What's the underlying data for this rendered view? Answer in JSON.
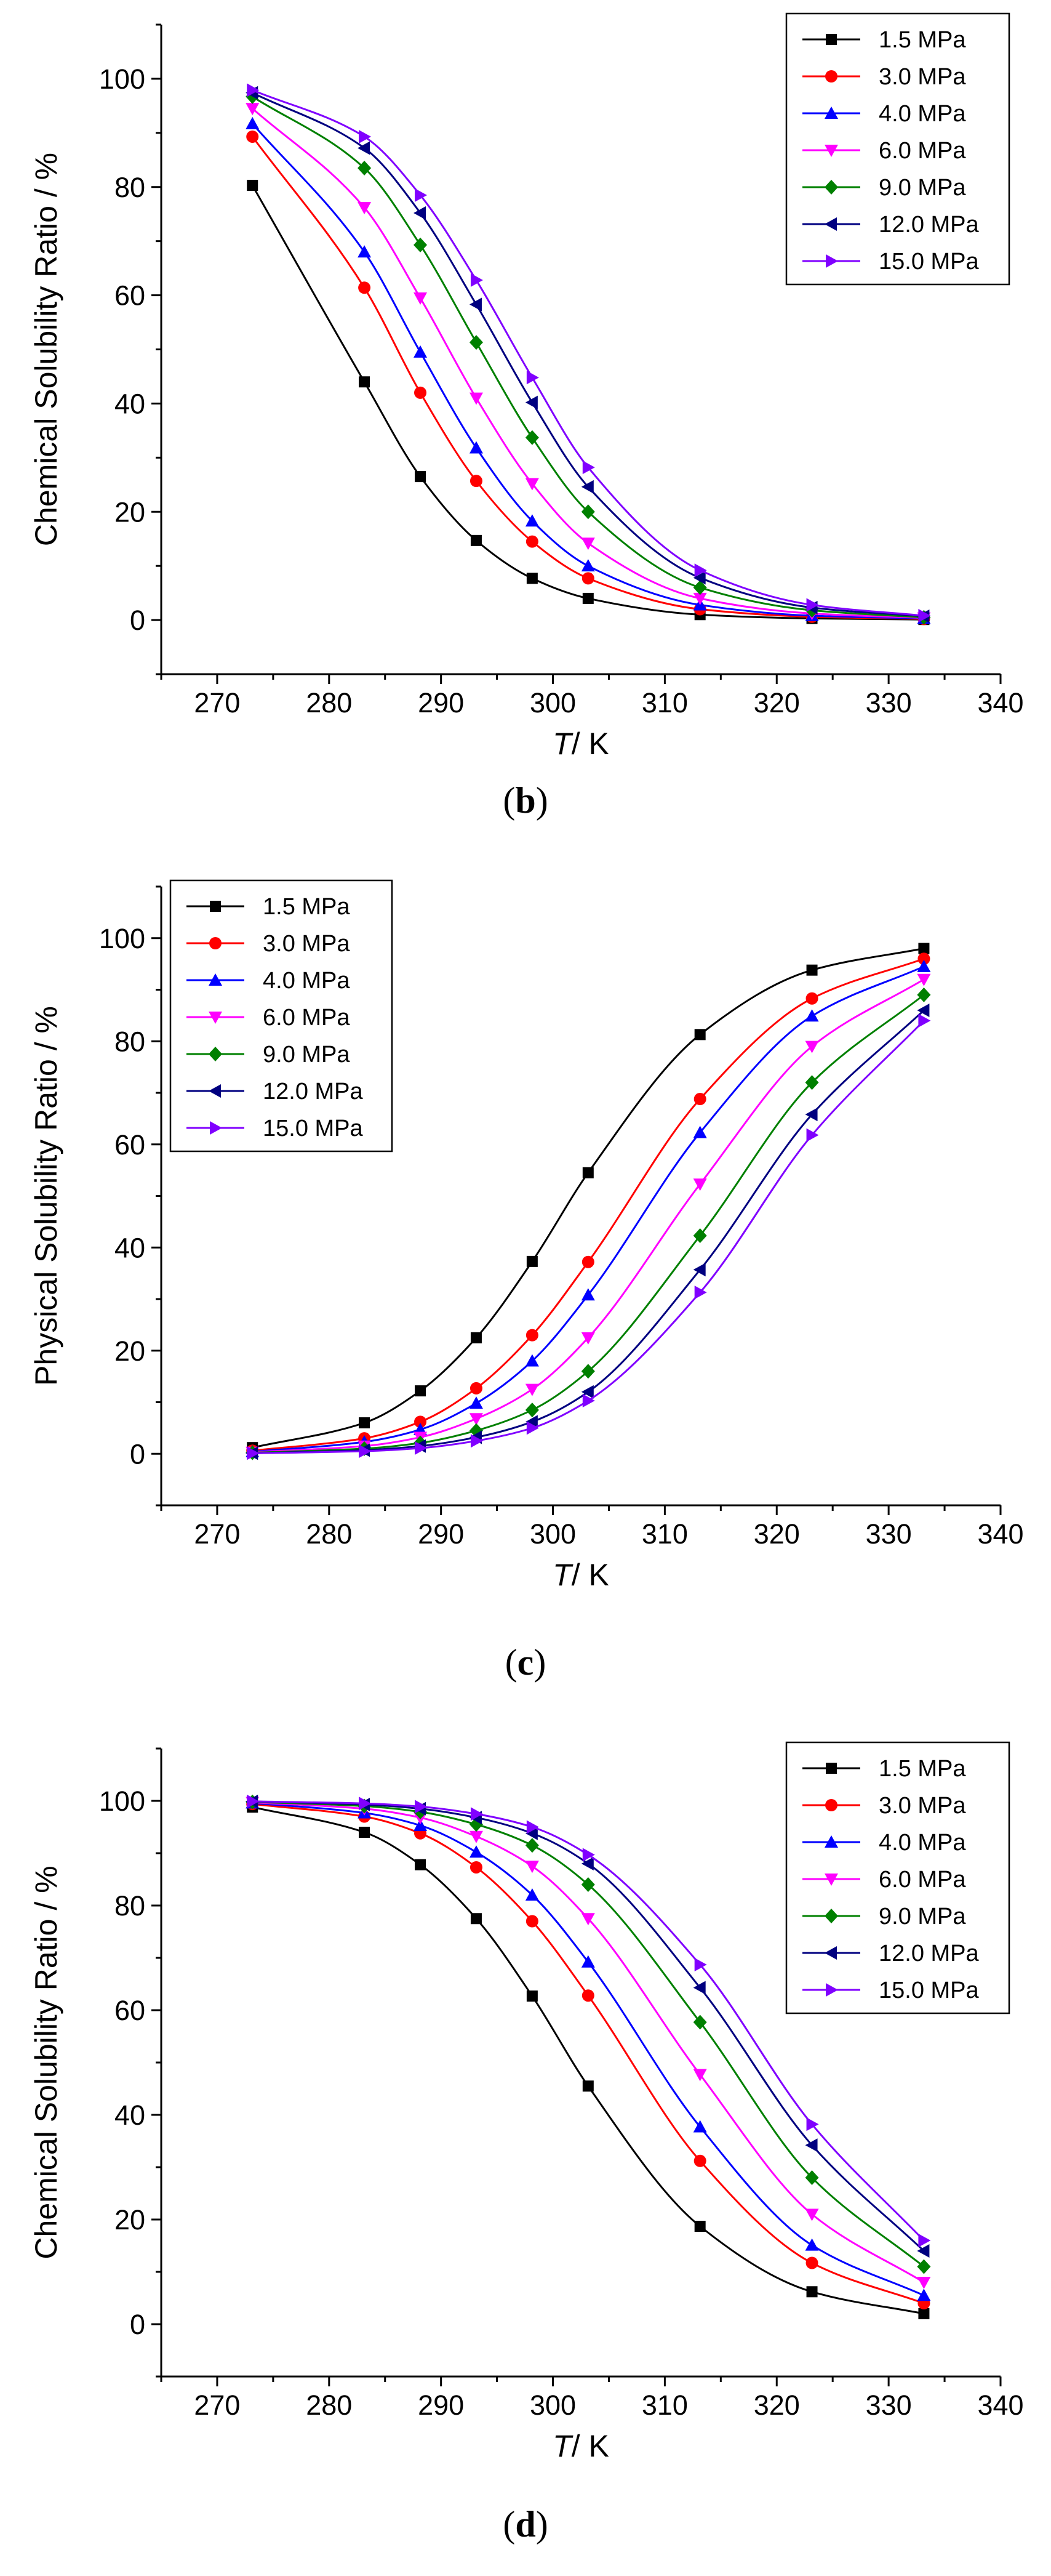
{
  "chart_data": [
    {
      "type": "line",
      "panel": "b",
      "caption": {
        "open": "(",
        "letter": "b",
        "close": ")"
      },
      "title": "",
      "xlabel_italic": "T",
      "xlabel_rest": "/ K",
      "ylabel": "Chemical Solubility Ratio / %",
      "xlim": [
        265,
        340
      ],
      "ylim": [
        -10,
        110
      ],
      "x_ticks": [
        270,
        280,
        290,
        300,
        310,
        320,
        330,
        340
      ],
      "y_ticks": [
        0,
        20,
        40,
        60,
        80,
        100
      ],
      "grid": false,
      "legend_position": "top-right",
      "x": [
        273.15,
        283.15,
        288.15,
        293.15,
        298.15,
        303.15,
        313.15,
        323.15,
        333.15
      ],
      "series": [
        {
          "name": "1.5 MPa",
          "color": "#000000",
          "marker": "square",
          "values": [
            80.3,
            44.0,
            26.5,
            14.7,
            7.7,
            4.0,
            1.0,
            0.3,
            0.1
          ]
        },
        {
          "name": "3.0 MPa",
          "color": "#ff0000",
          "marker": "circle",
          "values": [
            89.3,
            61.4,
            42.0,
            25.7,
            14.5,
            7.7,
            2.0,
            0.6,
            0.2
          ]
        },
        {
          "name": "4.0 MPa",
          "color": "#0000ff",
          "marker": "triangle-up",
          "values": [
            91.7,
            68.0,
            49.5,
            31.8,
            18.3,
            10.0,
            2.8,
            0.8,
            0.3
          ]
        },
        {
          "name": "6.0 MPa",
          "color": "#ff00ff",
          "marker": "triangle-down",
          "values": [
            94.5,
            76.2,
            59.5,
            41.0,
            25.2,
            14.2,
            4.0,
            1.2,
            0.4
          ]
        },
        {
          "name": "9.0 MPa",
          "color": "#008000",
          "marker": "diamond",
          "values": [
            96.7,
            83.5,
            69.3,
            51.3,
            33.7,
            20.0,
            6.0,
            1.8,
            0.5
          ]
        },
        {
          "name": "12.0 MPa",
          "color": "#000080",
          "marker": "triangle-left",
          "values": [
            97.4,
            87.2,
            75.2,
            58.3,
            40.2,
            24.6,
            7.8,
            2.3,
            0.7
          ]
        },
        {
          "name": "15.0 MPa",
          "color": "#8000ff",
          "marker": "triangle-right",
          "values": [
            97.9,
            89.3,
            78.5,
            62.8,
            44.8,
            28.2,
            9.2,
            2.8,
            0.8
          ]
        }
      ]
    },
    {
      "type": "line",
      "panel": "c",
      "caption": {
        "open": "(",
        "letter": "c",
        "close": ")"
      },
      "title": "",
      "xlabel_italic": "T",
      "xlabel_rest": "/ K",
      "ylabel": "Physical Solubility Ratio / %",
      "xlim": [
        265,
        340
      ],
      "ylim": [
        -10,
        110
      ],
      "x_ticks": [
        270,
        280,
        290,
        300,
        310,
        320,
        330,
        340
      ],
      "y_ticks": [
        0,
        20,
        40,
        60,
        80,
        100
      ],
      "grid": false,
      "legend_position": "top-left",
      "x": [
        273.15,
        283.15,
        288.15,
        293.15,
        298.15,
        303.15,
        313.15,
        323.15,
        333.15
      ],
      "series": [
        {
          "name": "1.5 MPa",
          "color": "#000000",
          "marker": "square",
          "values": [
            1.2,
            6.0,
            12.2,
            22.5,
            37.3,
            54.5,
            81.3,
            93.8,
            98.0
          ]
        },
        {
          "name": "3.0 MPa",
          "color": "#ff0000",
          "marker": "circle",
          "values": [
            0.6,
            3.0,
            6.2,
            12.7,
            23.0,
            37.2,
            68.8,
            88.3,
            96.0
          ]
        },
        {
          "name": "4.0 MPa",
          "color": "#0000ff",
          "marker": "triangle-up",
          "values": [
            0.4,
            2.3,
            4.7,
            9.8,
            18.0,
            30.8,
            62.3,
            84.9,
            94.5
          ]
        },
        {
          "name": "6.0 MPa",
          "color": "#ff00ff",
          "marker": "triangle-down",
          "values": [
            0.3,
            1.5,
            3.2,
            6.8,
            12.5,
            22.5,
            52.3,
            79.0,
            92.0
          ]
        },
        {
          "name": "9.0 MPa",
          "color": "#008000",
          "marker": "diamond",
          "values": [
            0.2,
            1.0,
            2.1,
            4.5,
            8.5,
            16.0,
            42.3,
            72.0,
            89.0
          ]
        },
        {
          "name": "12.0 MPa",
          "color": "#000080",
          "marker": "triangle-left",
          "values": [
            0.1,
            0.7,
            1.5,
            3.2,
            6.2,
            12.0,
            35.7,
            65.8,
            86.0
          ]
        },
        {
          "name": "15.0 MPa",
          "color": "#8000ff",
          "marker": "triangle-right",
          "values": [
            0.1,
            0.5,
            1.1,
            2.5,
            5.0,
            10.3,
            31.3,
            61.8,
            84.0
          ]
        }
      ]
    },
    {
      "type": "line",
      "panel": "d",
      "caption": {
        "open": "(",
        "letter": "d",
        "close": ")"
      },
      "title": "",
      "xlabel_italic": "T",
      "xlabel_rest": "/ K",
      "ylabel": "Chemical Solubility Ratio / %",
      "xlim": [
        265,
        340
      ],
      "ylim": [
        -10,
        110
      ],
      "x_ticks": [
        270,
        280,
        290,
        300,
        310,
        320,
        330,
        340
      ],
      "y_ticks": [
        0,
        20,
        40,
        60,
        80,
        100
      ],
      "grid": false,
      "legend_position": "top-right",
      "x": [
        273.15,
        283.15,
        288.15,
        293.15,
        298.15,
        303.15,
        313.15,
        323.15,
        333.15
      ],
      "series": [
        {
          "name": "1.5 MPa",
          "color": "#000000",
          "marker": "square",
          "values": [
            98.8,
            94.0,
            87.8,
            77.5,
            62.7,
            45.5,
            18.7,
            6.2,
            2.0
          ]
        },
        {
          "name": "3.0 MPa",
          "color": "#ff0000",
          "marker": "circle",
          "values": [
            99.4,
            97.0,
            93.8,
            87.3,
            77.0,
            62.8,
            31.2,
            11.7,
            4.0
          ]
        },
        {
          "name": "4.0 MPa",
          "color": "#0000ff",
          "marker": "triangle-up",
          "values": [
            99.6,
            97.7,
            95.3,
            90.2,
            82.0,
            69.2,
            37.7,
            15.1,
            5.5
          ]
        },
        {
          "name": "6.0 MPa",
          "color": "#ff00ff",
          "marker": "triangle-down",
          "values": [
            99.7,
            98.5,
            96.8,
            93.2,
            87.5,
            77.5,
            47.7,
            21.0,
            8.0
          ]
        },
        {
          "name": "9.0 MPa",
          "color": "#008000",
          "marker": "diamond",
          "values": [
            99.8,
            99.0,
            97.9,
            95.5,
            91.5,
            84.0,
            57.7,
            28.0,
            11.0
          ]
        },
        {
          "name": "12.0 MPa",
          "color": "#000080",
          "marker": "triangle-left",
          "values": [
            99.9,
            99.3,
            98.5,
            96.8,
            93.8,
            88.0,
            64.3,
            34.2,
            14.0
          ]
        },
        {
          "name": "15.0 MPa",
          "color": "#8000ff",
          "marker": "triangle-right",
          "values": [
            99.9,
            99.5,
            98.9,
            97.5,
            95.0,
            89.7,
            68.7,
            38.2,
            16.0
          ]
        }
      ]
    }
  ]
}
